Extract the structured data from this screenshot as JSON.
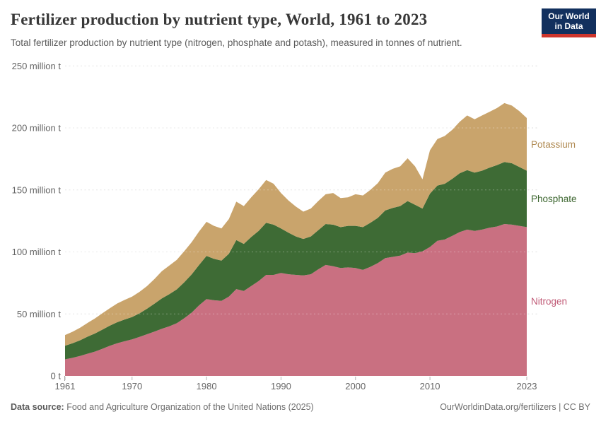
{
  "header": {
    "title": "Fertilizer production by nutrient type, World, 1961 to 2023",
    "subtitle": "Total fertilizer production by nutrient type (nitrogen, phosphate and potash), measured in tonnes of nutrient.",
    "logo": {
      "line1": "Our World",
      "line2": "in Data",
      "bg_color": "#12305e",
      "bar_color": "#ce352c"
    }
  },
  "footer": {
    "source_label": "Data source:",
    "source_text": " Food and Agriculture Organization of the United Nations (2025)",
    "credit": "OurWorldinData.org/fertilizers | CC BY"
  },
  "chart_data": {
    "type": "area",
    "stacked": true,
    "title": "Fertilizer production by nutrient type, World, 1961 to 2023",
    "unit": "million tonnes of nutrient",
    "ylim": [
      0,
      250
    ],
    "grid": true,
    "legend_position": "right-of-plot",
    "years": [
      1961,
      1962,
      1963,
      1964,
      1965,
      1966,
      1967,
      1968,
      1969,
      1970,
      1971,
      1972,
      1973,
      1974,
      1975,
      1976,
      1977,
      1978,
      1979,
      1980,
      1981,
      1982,
      1983,
      1984,
      1985,
      1986,
      1987,
      1988,
      1989,
      1990,
      1991,
      1992,
      1993,
      1994,
      1995,
      1996,
      1997,
      1998,
      1999,
      2000,
      2001,
      2002,
      2003,
      2004,
      2005,
      2006,
      2007,
      2008,
      2009,
      2010,
      2011,
      2012,
      2013,
      2014,
      2015,
      2016,
      2017,
      2018,
      2019,
      2020,
      2021,
      2022,
      2023
    ],
    "series": [
      {
        "name": "Nitrogen",
        "color": "#c97081",
        "label_color": "#c05a76",
        "values": [
          13.4,
          14.6,
          16.1,
          17.9,
          19.6,
          21.9,
          24.3,
          26.4,
          28.0,
          29.5,
          31.5,
          33.6,
          35.8,
          38.0,
          40.0,
          42.5,
          46.5,
          51.0,
          57.0,
          62.0,
          61.0,
          60.5,
          64.0,
          70.0,
          68.5,
          72.5,
          76.5,
          81.5,
          81.5,
          83.0,
          82.0,
          81.5,
          81.0,
          82.0,
          86.0,
          89.5,
          88.5,
          87.0,
          87.5,
          87.0,
          85.5,
          88.0,
          91.0,
          95.0,
          96.0,
          97.0,
          99.5,
          99.0,
          100.5,
          104.0,
          109.0,
          110.0,
          113.0,
          116.0,
          118.0,
          117.0,
          118.0,
          119.5,
          120.5,
          122.5,
          122.0,
          121.0,
          120.0
        ]
      },
      {
        "name": "Phosphate",
        "color": "#3e6b35",
        "label_color": "#3c662f",
        "values": [
          11.0,
          11.7,
          12.6,
          13.7,
          14.6,
          15.4,
          16.2,
          16.9,
          17.5,
          18.0,
          19.0,
          20.6,
          22.5,
          24.5,
          26.0,
          27.3,
          29.0,
          30.8,
          32.5,
          34.8,
          33.5,
          32.5,
          34.5,
          39.5,
          38.0,
          39.5,
          40.5,
          42.0,
          40.5,
          36.0,
          33.5,
          31.0,
          29.5,
          30.5,
          31.5,
          33.0,
          33.5,
          33.0,
          33.5,
          34.0,
          34.5,
          35.5,
          36.5,
          38.5,
          39.5,
          40.0,
          41.5,
          39.0,
          34.5,
          43.0,
          44.5,
          45.0,
          46.0,
          47.5,
          48.0,
          47.0,
          47.5,
          48.5,
          49.5,
          50.0,
          49.5,
          47.5,
          45.5
        ]
      },
      {
        "name": "Potassium",
        "color": "#c9a46c",
        "label_color": "#b08a52",
        "values": [
          8.6,
          9.3,
          10.1,
          11.1,
          12.1,
          13.2,
          14.1,
          15.1,
          15.8,
          16.5,
          17.3,
          18.2,
          19.8,
          22.0,
          23.0,
          23.8,
          25.0,
          26.0,
          27.0,
          27.5,
          26.5,
          26.0,
          28.0,
          31.0,
          30.5,
          32.0,
          33.5,
          34.5,
          33.0,
          28.5,
          26.0,
          24.0,
          22.0,
          22.5,
          23.5,
          24.0,
          25.5,
          23.5,
          23.0,
          25.5,
          25.5,
          26.5,
          28.0,
          30.5,
          31.5,
          32.0,
          34.5,
          31.0,
          23.5,
          35.0,
          37.5,
          38.5,
          39.5,
          41.5,
          44.0,
          43.0,
          44.5,
          45.0,
          46.0,
          47.5,
          46.5,
          45.0,
          42.5
        ]
      }
    ],
    "y_ticks": [
      0,
      50,
      100,
      150,
      200,
      250
    ],
    "y_tick_labels": [
      "0 t",
      "50 million t",
      "100 million t",
      "150 million t",
      "200 million t",
      "250 million t"
    ],
    "x_ticks": [
      1961,
      1970,
      1980,
      1990,
      2000,
      2010,
      2023
    ],
    "x_tick_labels": [
      "1961",
      "1970",
      "1980",
      "1990",
      "2000",
      "2010",
      "2023"
    ],
    "gridline_color": "#dddddd",
    "axis_text_color": "#666666"
  }
}
